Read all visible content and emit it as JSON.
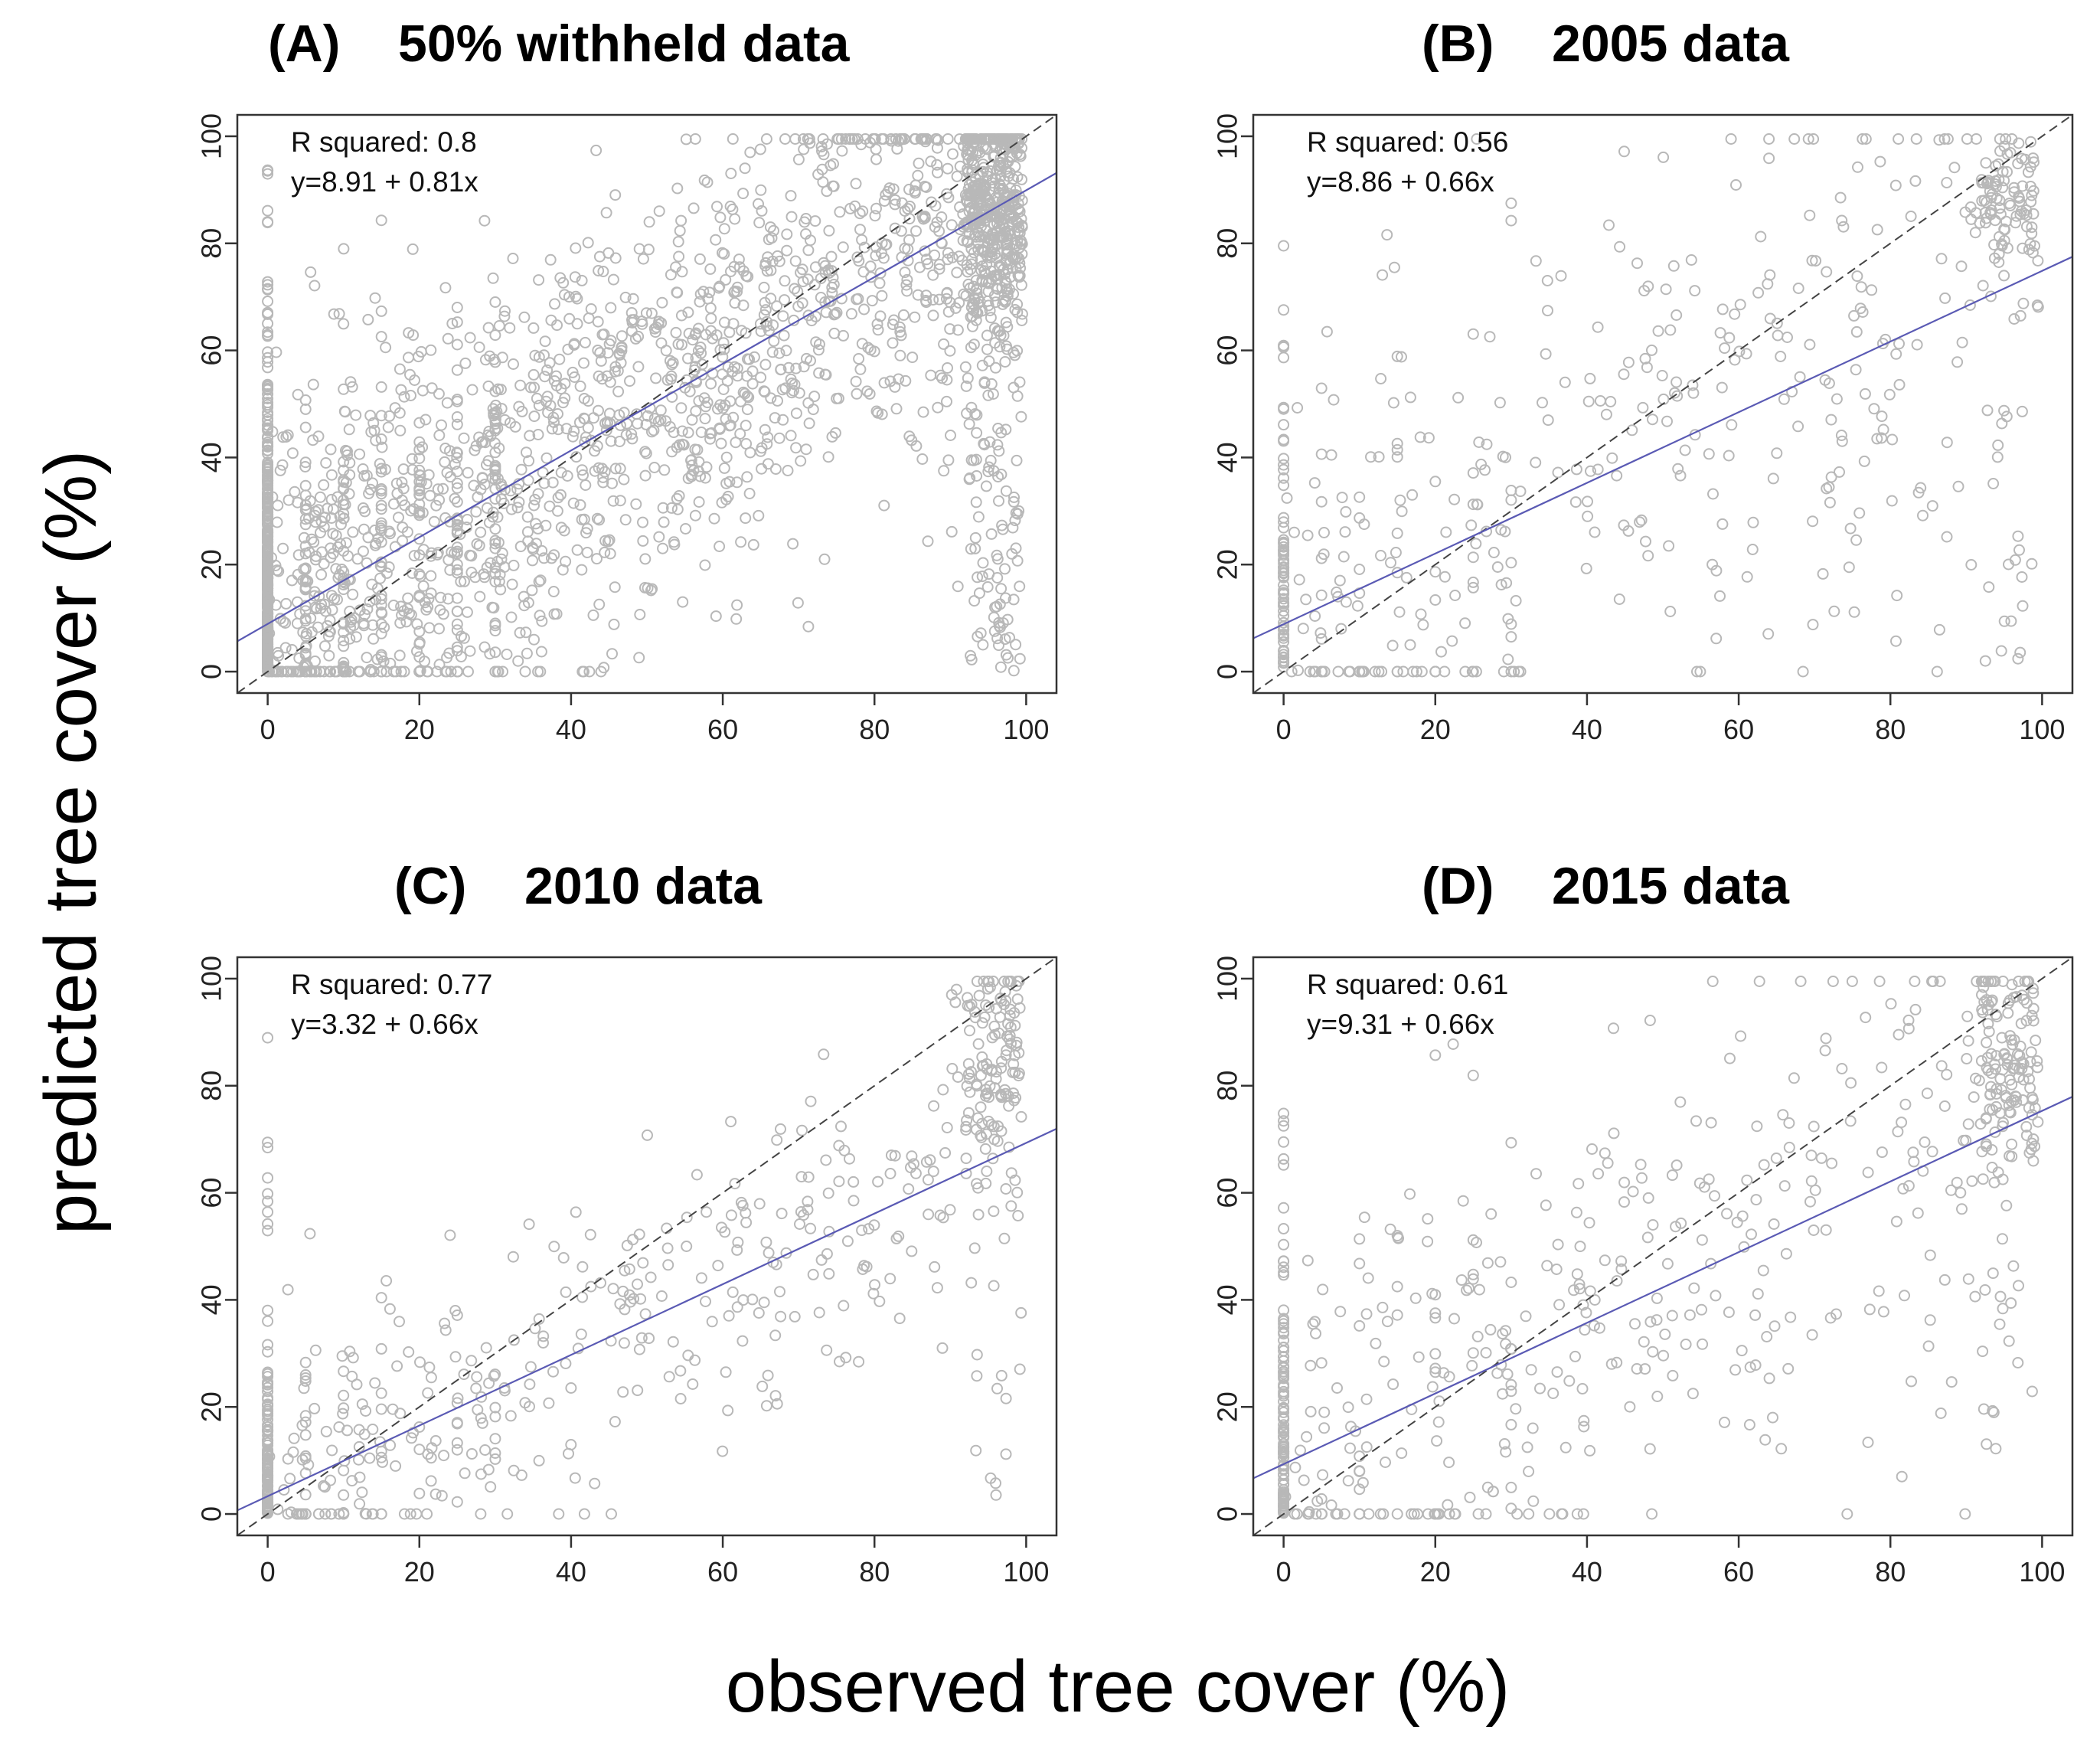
{
  "figure": {
    "xlabel": "observed tree cover (%)",
    "ylabel": "predicted tree cover (%)"
  },
  "chart_data": [
    {
      "type": "scatter",
      "id": "A",
      "letter": "(A)",
      "title": "50% withheld data",
      "r2_text": "R squared: 0.8",
      "eq_text": "y=8.91 + 0.81x",
      "intercept": 8.91,
      "slope": 0.81,
      "n_points": 2600,
      "seed": 11,
      "xlim": [
        -4,
        104
      ],
      "ylim": [
        -4,
        104
      ],
      "xticks": [
        0,
        20,
        40,
        60,
        80,
        100
      ],
      "yticks": [
        0,
        20,
        40,
        60,
        80,
        100
      ],
      "xlabel": "observed tree cover (%)",
      "ylabel": "predicted tree cover (%)",
      "series": [
        {
          "name": "observations vs predictions",
          "style": "gray open circles"
        },
        {
          "name": "1:1 line",
          "style": "black dashed"
        },
        {
          "name": "regression line",
          "style": "blue solid",
          "intercept": 8.91,
          "slope": 0.81
        }
      ]
    },
    {
      "type": "scatter",
      "id": "B",
      "letter": "(B)",
      "title": "2005 data",
      "r2_text": "R squared: 0.56",
      "eq_text": "y=8.86 + 0.66x",
      "intercept": 8.86,
      "slope": 0.66,
      "n_points": 560,
      "seed": 23,
      "xlim": [
        -4,
        104
      ],
      "ylim": [
        -4,
        104
      ],
      "xticks": [
        0,
        20,
        40,
        60,
        80,
        100
      ],
      "yticks": [
        0,
        20,
        40,
        60,
        80,
        100
      ],
      "xlabel": "observed tree cover (%)",
      "ylabel": "predicted tree cover (%)",
      "series": [
        {
          "name": "observations vs predictions",
          "style": "gray open circles"
        },
        {
          "name": "1:1 line",
          "style": "black dashed"
        },
        {
          "name": "regression line",
          "style": "blue solid",
          "intercept": 8.86,
          "slope": 0.66
        }
      ]
    },
    {
      "type": "scatter",
      "id": "C",
      "letter": "(C)",
      "title": "2010 data",
      "r2_text": "R squared: 0.77",
      "eq_text": "y=3.32 + 0.66x",
      "intercept": 3.32,
      "slope": 0.66,
      "n_points": 620,
      "seed": 37,
      "xlim": [
        -4,
        104
      ],
      "ylim": [
        -4,
        104
      ],
      "xticks": [
        0,
        20,
        40,
        60,
        80,
        100
      ],
      "yticks": [
        0,
        20,
        40,
        60,
        80,
        100
      ],
      "xlabel": "observed tree cover (%)",
      "ylabel": "predicted tree cover (%)",
      "series": [
        {
          "name": "observations vs predictions",
          "style": "gray open circles"
        },
        {
          "name": "1:1 line",
          "style": "black dashed"
        },
        {
          "name": "regression line",
          "style": "blue solid",
          "intercept": 3.32,
          "slope": 0.66
        }
      ]
    },
    {
      "type": "scatter",
      "id": "D",
      "letter": "(D)",
      "title": "2015 data",
      "r2_text": "R squared: 0.61",
      "eq_text": "y=9.31 + 0.66x",
      "intercept": 9.31,
      "slope": 0.66,
      "n_points": 640,
      "seed": 53,
      "xlim": [
        -4,
        104
      ],
      "ylim": [
        -4,
        104
      ],
      "xticks": [
        0,
        20,
        40,
        60,
        80,
        100
      ],
      "yticks": [
        0,
        20,
        40,
        60,
        80,
        100
      ],
      "xlabel": "observed tree cover (%)",
      "ylabel": "predicted tree cover (%)",
      "series": [
        {
          "name": "observations vs predictions",
          "style": "gray open circles"
        },
        {
          "name": "1:1 line",
          "style": "black dashed"
        },
        {
          "name": "regression line",
          "style": "blue solid",
          "intercept": 9.31,
          "slope": 0.66
        }
      ]
    }
  ],
  "colors": {
    "points": "#b8b8b8",
    "regression": "#5a5ab4",
    "identity": "#444444",
    "frame": "#333333"
  }
}
